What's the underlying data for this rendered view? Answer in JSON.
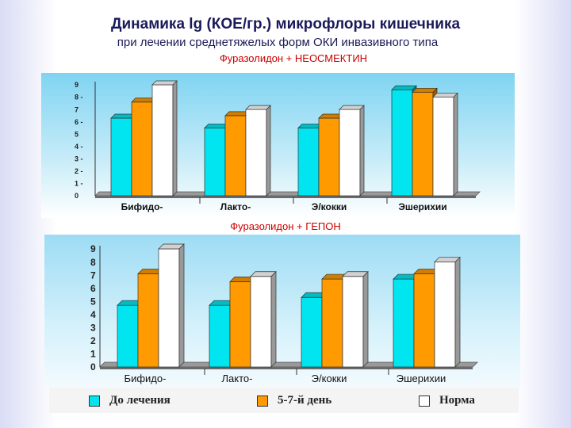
{
  "title": "Динамика lg (КОЕ/гр.) микрофлоры кишечника",
  "subtitle": "при лечении среднетяжелых форм ОКИ  инвазивного типа",
  "colors": {
    "before": "#00e5f0",
    "day": "#ff9a00",
    "norm": "#ffffff"
  },
  "chart_data": [
    {
      "type": "bar",
      "title": "Фуразолидон + НЕОСМЕКТИН",
      "categories": [
        "Бифидо-",
        "Лакто-",
        "Э/кокки",
        "Эшерихии"
      ],
      "series": [
        {
          "name": "До лечения",
          "values": [
            6.3,
            5.5,
            5.5,
            8.6
          ]
        },
        {
          "name": "5-7-й день",
          "values": [
            7.6,
            6.5,
            6.3,
            8.4
          ]
        },
        {
          "name": "Норма",
          "values": [
            9.0,
            7.0,
            7.0,
            8.0
          ]
        }
      ],
      "y_ticks": [
        "0",
        "1 -",
        "2 -",
        "3 -",
        "4 -",
        "5",
        "6 -",
        "7",
        "8 -",
        "9"
      ],
      "ylim": [
        0,
        9
      ]
    },
    {
      "type": "bar",
      "title": "Фуразолидон + ГЕПОН",
      "categories": [
        "Бифидо-",
        "Лакто-",
        "Э/кокки",
        "Эшерихии"
      ],
      "series": [
        {
          "name": "До лечения",
          "values": [
            4.7,
            4.7,
            5.3,
            6.7
          ]
        },
        {
          "name": "5-7-й день",
          "values": [
            7.1,
            6.5,
            6.7,
            7.1
          ]
        },
        {
          "name": "Норма",
          "values": [
            9.0,
            6.9,
            6.9,
            8.0
          ]
        }
      ],
      "y_ticks": [
        "0",
        "1",
        "2",
        "3",
        "4",
        "5",
        "6",
        "7",
        "8",
        "9"
      ],
      "ylim": [
        0,
        9
      ]
    }
  ],
  "legend": [
    {
      "label": "До лечения"
    },
    {
      "label": "5-7-й день"
    },
    {
      "label": "Норма"
    }
  ]
}
